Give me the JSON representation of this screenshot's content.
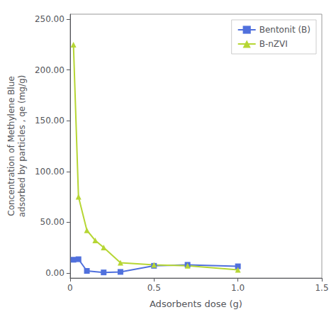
{
  "chart_data": {
    "type": "line",
    "xlabel": "Adsorbents dose (g)",
    "ylabel": "Concentration of Methylene Blue\nadsorbed by particles , qe (mg/g)",
    "series": [
      {
        "name": "Bentonit (B)",
        "marker": "square",
        "x": [
          0.02,
          0.05,
          0.1,
          0.2,
          0.3,
          0.5,
          0.7,
          1.0
        ],
        "values": [
          13.0,
          13.5,
          2.0,
          0.5,
          1.0,
          7.0,
          8.0,
          6.5
        ]
      },
      {
        "name": "B-nZVI",
        "marker": "triangle",
        "x": [
          0.02,
          0.05,
          0.1,
          0.15,
          0.2,
          0.3,
          0.5,
          0.7,
          1.0
        ],
        "values": [
          225.0,
          75.0,
          42.0,
          32.0,
          25.0,
          10.0,
          8.0,
          7.0,
          3.0
        ]
      }
    ],
    "xlim": [
      0,
      1.5
    ],
    "xticks": [
      0,
      0.5,
      {
        "value": 1.0,
        "label": "1.0"
      },
      1.5
    ],
    "ylim": [
      -5,
      255
    ],
    "yticks": [
      {
        "value": 0.0,
        "label": "0.00"
      },
      {
        "value": 50.0,
        "label": "50.00"
      },
      {
        "value": 100.0,
        "label": "100.00"
      },
      {
        "value": 150.0,
        "label": "150.00"
      },
      {
        "value": 200.0,
        "label": "200.00"
      },
      {
        "value": 250.0,
        "label": "250.00"
      }
    ],
    "legend": "upper right",
    "grid": false
  }
}
